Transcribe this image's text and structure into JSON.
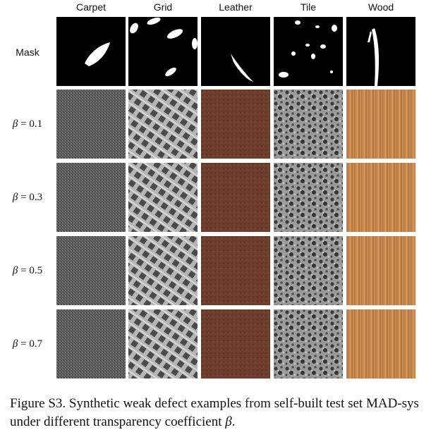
{
  "columns": [
    "Carpet",
    "Grid",
    "Leather",
    "Tile",
    "Wood"
  ],
  "rows": [
    {
      "label": "Mask",
      "kind": "mask"
    },
    {
      "label_symbol": "β",
      "label_value": " = 0.1",
      "kind": "texture"
    },
    {
      "label_symbol": "β",
      "label_value": " = 0.3",
      "kind": "texture"
    },
    {
      "label_symbol": "β",
      "label_value": " = 0.5",
      "kind": "texture"
    },
    {
      "label_symbol": "β",
      "label_value": " = 0.7",
      "kind": "texture"
    }
  ],
  "caption": {
    "text": "Figure S3. Synthetic weak defect examples from self-built test set MAD-sys under different transparency coefficient ",
    "symbol": "β",
    "end": "."
  },
  "colors": {
    "carpet": "#5a5a5a",
    "grid_bg": "#9a9a9a",
    "leather": "#6b3a2c",
    "tile_bg": "#8c8c8c",
    "wood": "#c98a52"
  }
}
